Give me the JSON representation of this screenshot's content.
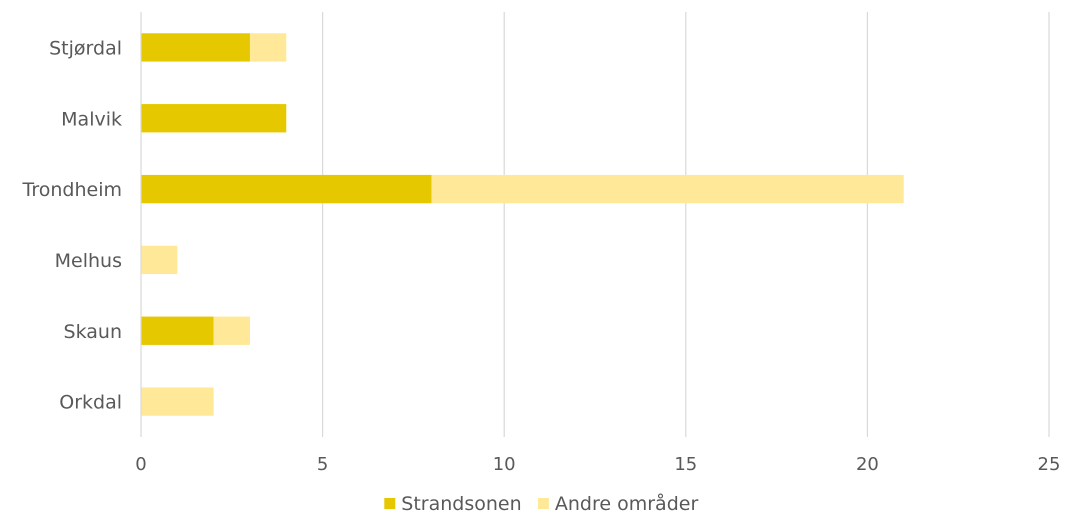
{
  "chart_data": {
    "type": "bar",
    "orientation": "horizontal",
    "stacked": true,
    "categories": [
      "Stjørdal",
      "Malvik",
      "Trondheim",
      "Melhus",
      "Skaun",
      "Orkdal"
    ],
    "series": [
      {
        "name": "Strandsonen",
        "values": [
          3,
          4,
          8,
          0,
          2,
          0
        ],
        "color": "#E5C800"
      },
      {
        "name": "Andre områder",
        "values": [
          1,
          0,
          13,
          1,
          1,
          2
        ],
        "color": "#FFE999"
      }
    ],
    "xlim": [
      0,
      25
    ],
    "xticks": [
      0,
      5,
      10,
      15,
      20,
      25
    ],
    "xtick_labels": [
      "0",
      "5",
      "10",
      "15",
      "20",
      "25"
    ],
    "grid": "vertical",
    "legend_position": "bottom",
    "title": "",
    "xlabel": "",
    "ylabel": ""
  }
}
